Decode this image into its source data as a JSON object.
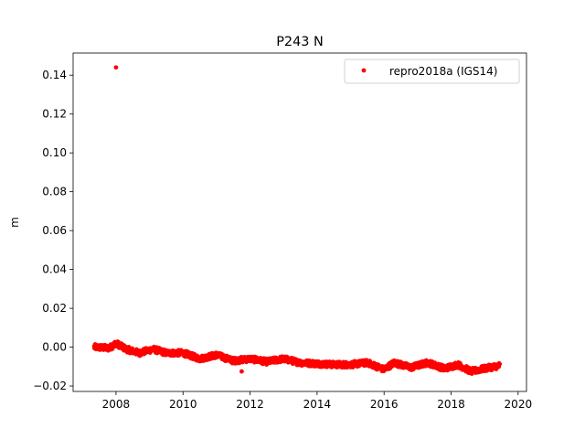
{
  "chart_data": {
    "type": "scatter",
    "title": "P243 N",
    "xlabel": "",
    "ylabel": "m",
    "xlim": [
      2006.72,
      2020.25
    ],
    "ylim": [
      -0.0228,
      0.1514
    ],
    "xticks": [
      2008,
      2010,
      2012,
      2014,
      2016,
      2018,
      2020
    ],
    "yticks": [
      -0.02,
      0.0,
      0.02,
      0.04,
      0.06,
      0.08,
      0.1,
      0.12,
      0.14
    ],
    "ytick_labels": [
      "−0.02",
      "0.00",
      "0.02",
      "0.04",
      "0.06",
      "0.08",
      "0.10",
      "0.12",
      "0.14"
    ],
    "grid": false,
    "legend": "upper-right",
    "series": [
      {
        "name": "repro2018a (IGS14)",
        "color": "#ff0000",
        "marker": "dot",
        "x_range": [
          2007.35,
          2019.45
        ],
        "outliers": [
          {
            "x": 2008.0,
            "y": 0.144
          },
          {
            "x": 2011.75,
            "y": -0.0125
          }
        ],
        "trend": [
          {
            "x": 2007.35,
            "y": 0.0
          },
          {
            "x": 2007.8,
            "y": -0.0005
          },
          {
            "x": 2008.0,
            "y": 0.002
          },
          {
            "x": 2008.3,
            "y": -0.001
          },
          {
            "x": 2008.7,
            "y": -0.003
          },
          {
            "x": 2009.1,
            "y": -0.001
          },
          {
            "x": 2009.5,
            "y": -0.003
          },
          {
            "x": 2010.0,
            "y": -0.003
          },
          {
            "x": 2010.5,
            "y": -0.006
          },
          {
            "x": 2011.0,
            "y": -0.004
          },
          {
            "x": 2011.5,
            "y": -0.007
          },
          {
            "x": 2012.0,
            "y": -0.006
          },
          {
            "x": 2012.5,
            "y": -0.0075
          },
          {
            "x": 2013.0,
            "y": -0.006
          },
          {
            "x": 2013.5,
            "y": -0.008
          },
          {
            "x": 2014.0,
            "y": -0.0085
          },
          {
            "x": 2014.5,
            "y": -0.009
          },
          {
            "x": 2015.0,
            "y": -0.009
          },
          {
            "x": 2015.5,
            "y": -0.008
          },
          {
            "x": 2016.0,
            "y": -0.0115
          },
          {
            "x": 2016.3,
            "y": -0.008
          },
          {
            "x": 2016.8,
            "y": -0.0105
          },
          {
            "x": 2017.3,
            "y": -0.008
          },
          {
            "x": 2017.8,
            "y": -0.011
          },
          {
            "x": 2018.2,
            "y": -0.009
          },
          {
            "x": 2018.6,
            "y": -0.0125
          },
          {
            "x": 2019.0,
            "y": -0.011
          },
          {
            "x": 2019.45,
            "y": -0.0095
          }
        ]
      }
    ]
  }
}
